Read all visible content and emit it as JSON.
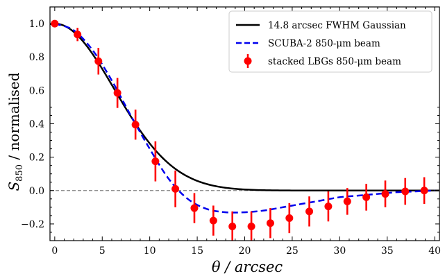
{
  "chart_data": {
    "type": "line",
    "title": "",
    "xlabel": "θ / arcsec",
    "ylabel": "S850 / normalised",
    "ylabel_parts": {
      "symbol": "S",
      "subscript": "850",
      "rest": " / normalised"
    },
    "xlim": [
      -0.5,
      40.5
    ],
    "ylim": [
      -0.3,
      1.1
    ],
    "xticks": [
      0,
      5,
      10,
      15,
      20,
      25,
      30,
      35,
      40
    ],
    "yticks": [
      -0.2,
      0.0,
      0.2,
      0.4,
      0.6,
      0.8,
      1.0
    ],
    "ytick_labels": [
      "−0.2",
      "0.0",
      "0.2",
      "0.4",
      "0.6",
      "0.8",
      "1.0"
    ],
    "grid": false,
    "legend_position": "top-right",
    "reference_line": {
      "y": 0.0,
      "style": "dashed",
      "color": "#808080"
    },
    "series": [
      {
        "name": "14.8 arcsec FWHM Gaussian",
        "kind": "line",
        "style": "solid",
        "color": "#000000",
        "fwhm": 14.8
      },
      {
        "name": "SCUBA-2 850-μm beam",
        "kind": "line",
        "style": "dashed",
        "color": "#0000ee",
        "x": [
          0,
          2,
          4,
          6,
          8,
          10,
          12,
          14,
          16,
          18,
          20,
          22,
          24,
          26,
          28,
          30,
          32,
          34,
          36,
          38,
          40
        ],
        "y": [
          1.0,
          0.96,
          0.84,
          0.66,
          0.45,
          0.25,
          0.07,
          -0.05,
          -0.11,
          -0.13,
          -0.13,
          -0.12,
          -0.1,
          -0.08,
          -0.06,
          -0.04,
          -0.03,
          -0.02,
          -0.01,
          -0.005,
          0.0
        ]
      },
      {
        "name": "stacked LBGs 850-μm beam",
        "kind": "errorbar",
        "color": "#ff0000",
        "x": [
          0.0,
          2.4,
          4.6,
          6.6,
          8.5,
          10.6,
          12.7,
          14.7,
          16.7,
          18.7,
          20.7,
          22.7,
          24.7,
          26.8,
          28.8,
          30.8,
          32.8,
          34.8,
          36.9,
          38.9
        ],
        "y": [
          1.0,
          0.935,
          0.775,
          0.585,
          0.395,
          0.175,
          0.01,
          -0.105,
          -0.18,
          -0.215,
          -0.215,
          -0.195,
          -0.165,
          -0.125,
          -0.095,
          -0.065,
          -0.04,
          -0.02,
          -0.005,
          0.0
        ],
        "err": [
          0.0,
          0.04,
          0.08,
          0.09,
          0.09,
          0.12,
          0.11,
          0.09,
          0.09,
          0.09,
          0.09,
          0.09,
          0.09,
          0.09,
          0.09,
          0.08,
          0.08,
          0.08,
          0.08,
          0.08
        ]
      }
    ]
  }
}
